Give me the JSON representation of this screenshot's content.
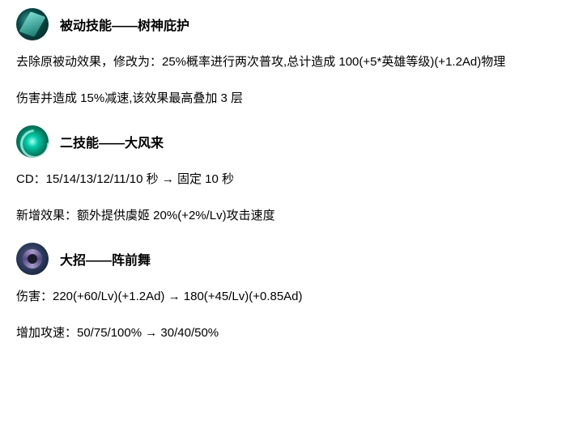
{
  "skills": [
    {
      "icon_class": "icon-passive",
      "title": "被动技能——树神庇护",
      "lines": [
        "去除原被动效果，修改为：25%概率进行两次普攻,总计造成 100(+5*英雄等级)(+1.2Ad)物理",
        "伤害并造成 15%减速,该效果最高叠加 3 层"
      ]
    },
    {
      "icon_class": "icon-skill2",
      "title": "二技能——大风来",
      "lines": [
        "CD：15/14/13/12/11/10  秒  →  固定 10 秒",
        "新增效果：额外提供虞姬 20%(+2%/Lv)攻击速度"
      ]
    },
    {
      "icon_class": "icon-ult",
      "title": "大招——阵前舞",
      "lines": [
        "伤害：220(+60/Lv)(+1.2Ad) → 180(+45/Lv)(+0.85Ad)",
        "增加攻速：50/75/100%  →  30/40/50%"
      ]
    }
  ]
}
